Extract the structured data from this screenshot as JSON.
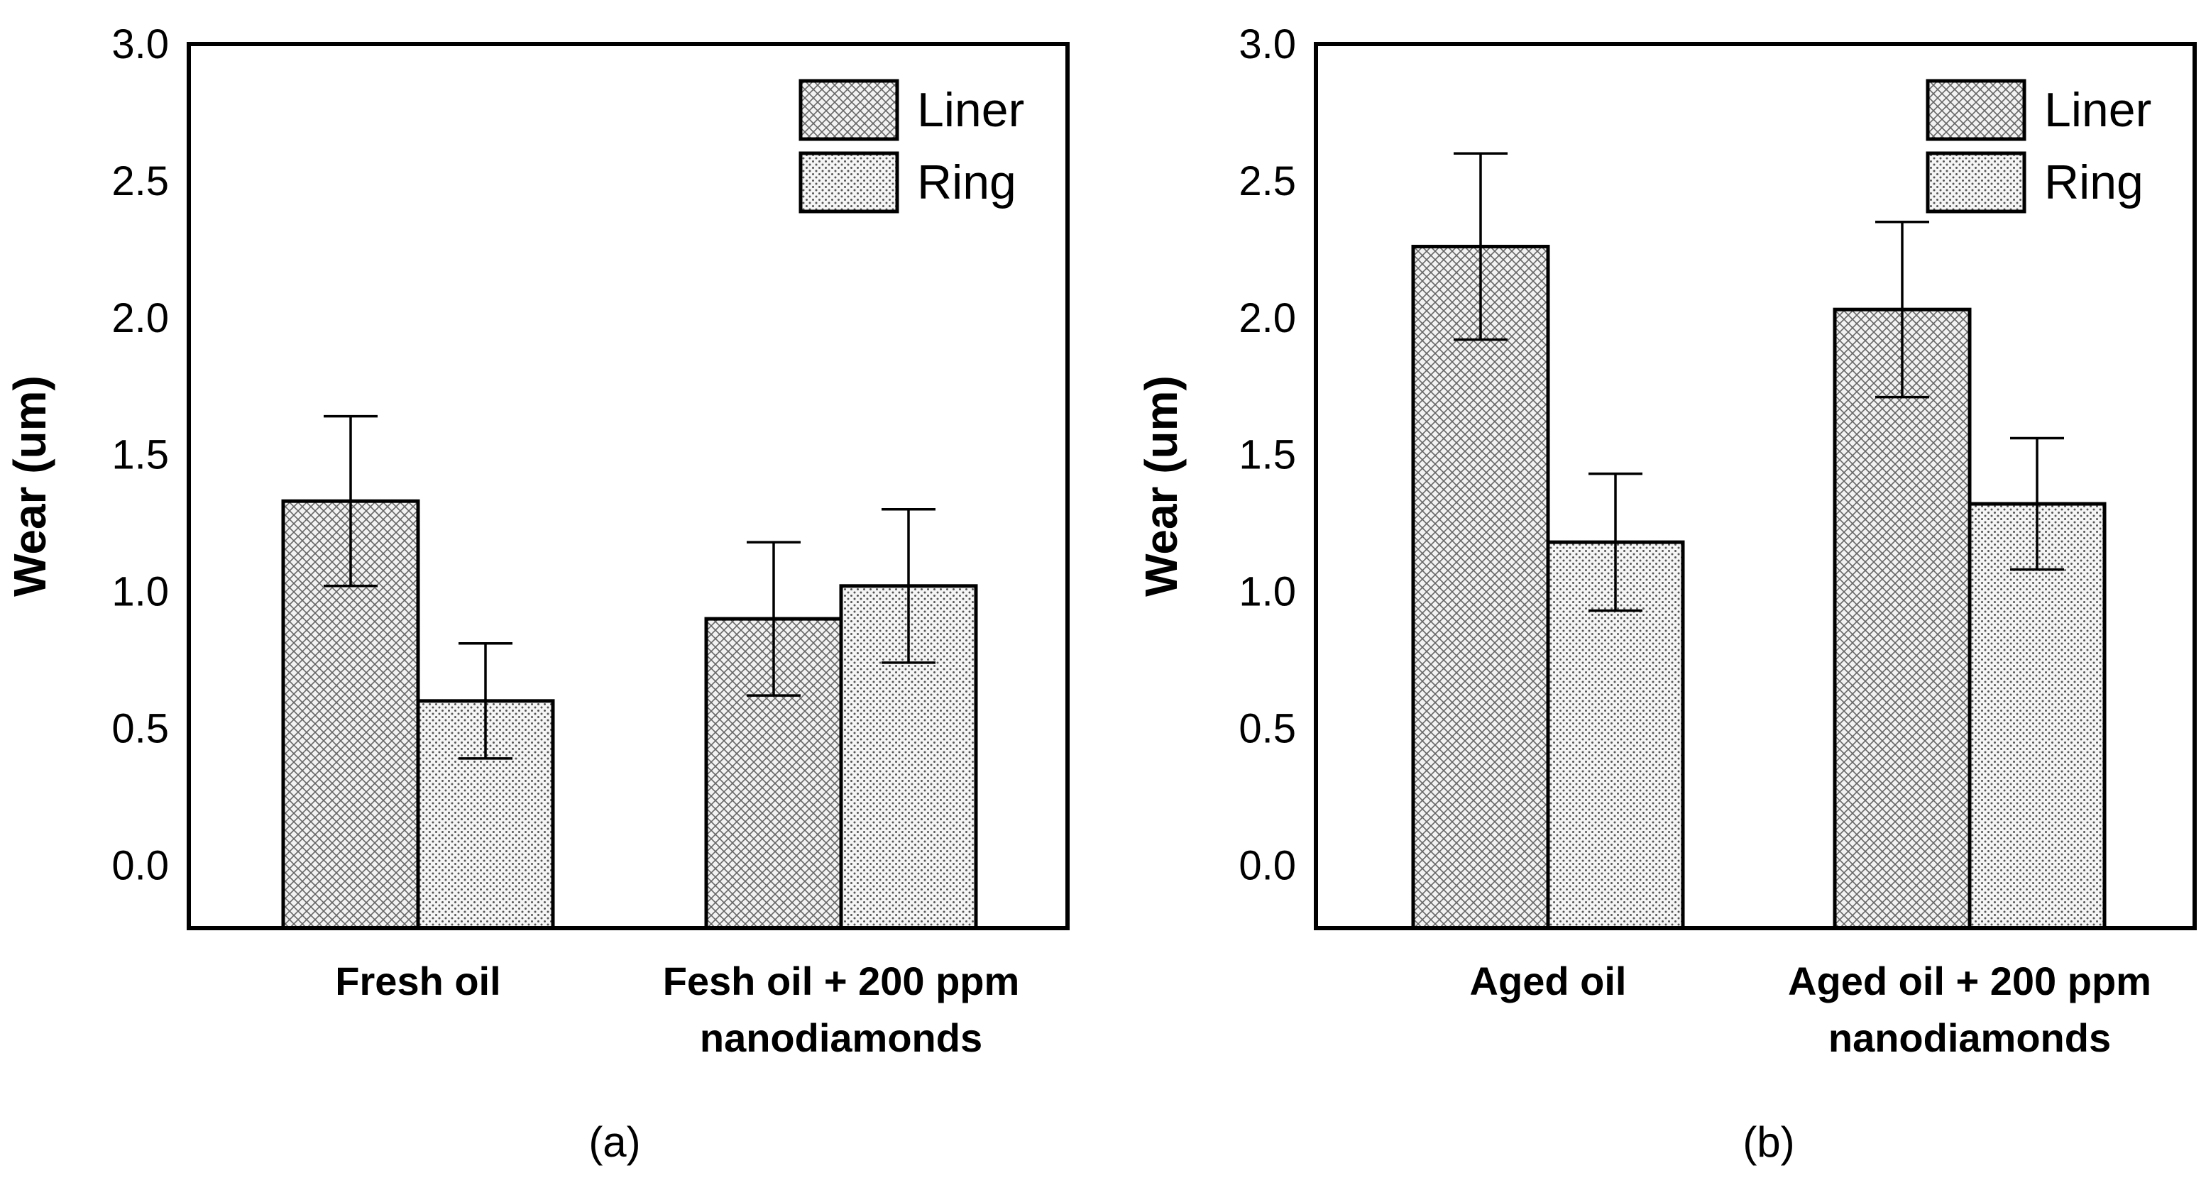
{
  "chart_data": [
    {
      "type": "bar",
      "panel_label": "(a)",
      "ylabel": "Wear (um)",
      "ylim": [
        -0.23,
        3.0
      ],
      "yticks": [
        "0.0",
        "0.5",
        "1.0",
        "1.5",
        "2.0",
        "2.5",
        "3.0"
      ],
      "categories": [
        [
          "Fresh oil"
        ],
        [
          "Fesh oil + 200 ppm",
          "nanodiamonds"
        ]
      ],
      "legend": {
        "position": "top-right",
        "entries": [
          "Liner",
          "Ring"
        ]
      },
      "series": [
        {
          "name": "Liner",
          "pattern": "crosshatch",
          "values": [
            1.33,
            0.9
          ],
          "error": [
            0.31,
            0.28
          ]
        },
        {
          "name": "Ring",
          "pattern": "dots",
          "values": [
            0.6,
            1.02
          ],
          "error": [
            0.21,
            0.28
          ]
        }
      ]
    },
    {
      "type": "bar",
      "panel_label": "(b)",
      "ylabel": "Wear (um)",
      "ylim": [
        -0.23,
        3.0
      ],
      "yticks": [
        "0.0",
        "0.5",
        "1.0",
        "1.5",
        "2.0",
        "2.5",
        "3.0"
      ],
      "categories": [
        [
          "Aged oil"
        ],
        [
          "Aged oil + 200 ppm",
          "nanodiamonds"
        ]
      ],
      "legend": {
        "position": "top-right",
        "entries": [
          "Liner",
          "Ring"
        ]
      },
      "series": [
        {
          "name": "Liner",
          "pattern": "crosshatch",
          "values": [
            2.26,
            2.03
          ],
          "error": [
            0.34,
            0.32
          ]
        },
        {
          "name": "Ring",
          "pattern": "dots",
          "values": [
            1.18,
            1.32
          ],
          "error": [
            0.25,
            0.24
          ]
        }
      ]
    }
  ]
}
